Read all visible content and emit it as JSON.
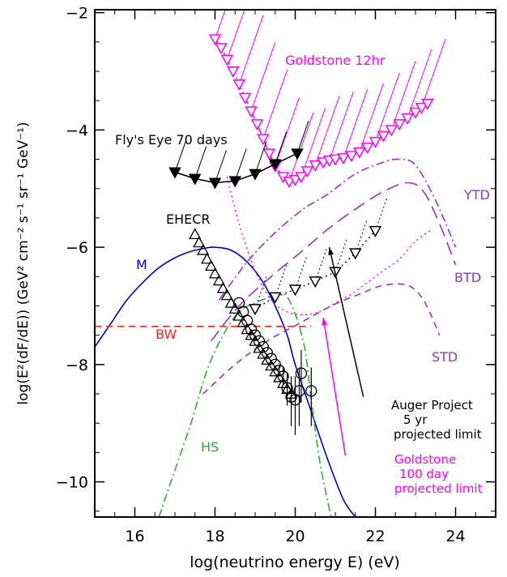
{
  "chart_data": {
    "type": "line",
    "xlabel": "log(neutrino energy E) (eV)",
    "ylabel": "log(E²(dF/dE))  (GeV² cm⁻² s⁻¹ sr⁻¹ GeV⁻¹)",
    "xlim": [
      15,
      25
    ],
    "ylim": [
      -10.6,
      -1.95
    ],
    "x_ticks": [
      16,
      18,
      20,
      22,
      24
    ],
    "y_ticks": [
      -10,
      -8,
      -6,
      -4,
      -2
    ],
    "x_tick_labels": [
      "16",
      "18",
      "20",
      "22",
      "24"
    ],
    "y_tick_labels": [
      "−10",
      "−8",
      "−6",
      "−4",
      "−2"
    ],
    "colors": {
      "goldstone": "#ff00ff",
      "topological": "#9933cc",
      "model_M": "#0000dd",
      "model_HS": "#33aa33",
      "bound_BW": "#ff2222",
      "data": "#000000"
    },
    "annotations": {
      "goldstone_12hr": "Goldstone 12hr",
      "flys_eye": "Fly's Eye 70 days",
      "ehecr": "EHECR",
      "m": "M",
      "bw": "BW",
      "hs": "HS",
      "ytd": "YTD",
      "btd": "BTD",
      "std": "STD",
      "auger_line1": "Auger Project",
      "auger_line2": "5 yr",
      "auger_line3": "projected limit",
      "goldstone100_line1": "Goldstone",
      "goldstone100_line2": "100 day",
      "goldstone100_line3": "projected limit"
    },
    "series": [
      {
        "key": "M",
        "style": "solid",
        "color": "model_M",
        "x": [
          15.0,
          15.4,
          15.8,
          16.2,
          16.6,
          17.0,
          17.4,
          17.8,
          18.0,
          18.4,
          18.8,
          19.2,
          19.5,
          19.8,
          20.0,
          20.4,
          20.8,
          21.2,
          21.5
        ],
        "y": [
          -7.7,
          -7.3,
          -6.9,
          -6.6,
          -6.35,
          -6.18,
          -6.07,
          -6.01,
          -6.0,
          -6.05,
          -6.25,
          -6.6,
          -7.0,
          -7.5,
          -8.0,
          -8.8,
          -9.6,
          -10.3,
          -10.6
        ]
      },
      {
        "key": "HS",
        "style": "dashdot",
        "color": "model_HS",
        "x": [
          16.6,
          17.0,
          17.4,
          17.8,
          18.2,
          18.6,
          19.0,
          19.4,
          19.8,
          20.2,
          20.4,
          20.6,
          20.8,
          20.9
        ],
        "y": [
          -10.6,
          -9.8,
          -9.0,
          -8.1,
          -7.5,
          -7.1,
          -6.95,
          -6.85,
          -6.85,
          -7.6,
          -8.6,
          -9.6,
          -10.3,
          -10.6
        ]
      },
      {
        "key": "BW",
        "style": "dashed",
        "color": "bound_BW",
        "x": [
          15.0,
          20.4
        ],
        "y": [
          -7.35,
          -7.35
        ]
      },
      {
        "key": "YTD",
        "style": "dashdot",
        "color": "topological",
        "x": [
          18.1,
          18.8,
          19.5,
          20.2,
          20.8,
          21.5,
          22.2,
          22.6,
          23.0,
          23.5,
          24.0
        ],
        "y": [
          -6.9,
          -6.25,
          -5.75,
          -5.35,
          -5.1,
          -4.75,
          -4.55,
          -4.5,
          -4.6,
          -5.2,
          -6.0
        ]
      },
      {
        "key": "BTD",
        "style": "longdash",
        "color": "topological",
        "x": [
          17.9,
          18.6,
          19.4,
          20.2,
          20.8,
          21.5,
          22.2,
          22.8,
          23.2,
          23.6,
          24.0
        ],
        "y": [
          -7.6,
          -7.0,
          -6.5,
          -6.05,
          -5.7,
          -5.35,
          -5.05,
          -4.9,
          -5.05,
          -5.6,
          -6.3
        ]
      },
      {
        "key": "STD",
        "style": "dashed",
        "color": "topological",
        "x": [
          17.7,
          18.5,
          19.3,
          20.1,
          20.9,
          21.6,
          22.2,
          22.8,
          23.2,
          23.6
        ],
        "y": [
          -8.5,
          -8.0,
          -7.6,
          -7.3,
          -7.0,
          -6.8,
          -6.65,
          -6.65,
          -6.9,
          -7.5
        ]
      },
      {
        "key": "Goldstone_12hr",
        "style": "dashdot",
        "color": "goldstone",
        "marker": "open-down-triangle",
        "hatch_up": true,
        "x": [
          18.0,
          18.15,
          18.3,
          18.45,
          18.6,
          18.75,
          18.9,
          19.05,
          19.2,
          19.35,
          19.5,
          19.7,
          19.85,
          20.0,
          20.15,
          20.3,
          20.5,
          20.7,
          20.85,
          21.0,
          21.2,
          21.4,
          21.6,
          21.8,
          22.0,
          22.2,
          22.4,
          22.6,
          22.8,
          23.0,
          23.15,
          23.3
        ],
        "y": [
          -2.45,
          -2.6,
          -2.8,
          -3.0,
          -3.22,
          -3.45,
          -3.68,
          -3.9,
          -4.15,
          -4.4,
          -4.62,
          -4.8,
          -4.88,
          -4.85,
          -4.8,
          -4.7,
          -4.6,
          -4.55,
          -4.52,
          -4.5,
          -4.48,
          -4.44,
          -4.38,
          -4.3,
          -4.2,
          -4.1,
          -4.0,
          -3.9,
          -3.8,
          -3.7,
          -3.62,
          -3.55
        ]
      },
      {
        "key": "Flys_Eye_70_days",
        "style": "solid",
        "color": "data",
        "marker": "filled-down-triangle",
        "hatch_up": true,
        "x": [
          17.0,
          17.5,
          18.0,
          18.5,
          19.0,
          19.5,
          20.05
        ],
        "y": [
          -4.72,
          -4.83,
          -4.9,
          -4.87,
          -4.75,
          -4.58,
          -4.4
        ]
      },
      {
        "key": "Auger",
        "style": "dotted",
        "color": "data",
        "marker": "open-down-triangle",
        "hatch_up": true,
        "x": [
          19.0,
          19.5,
          20.0,
          20.5,
          21.0,
          21.5,
          22.0
        ],
        "y": [
          -7.05,
          -6.85,
          -6.72,
          -6.58,
          -6.42,
          -6.1,
          -5.72
        ]
      },
      {
        "key": "Goldstone_100_day",
        "style": "dotted",
        "color": "goldstone",
        "x": [
          18.3,
          18.6,
          19.0,
          19.4,
          19.8,
          20.2,
          20.6,
          21.0,
          21.4,
          21.8,
          22.2,
          22.6,
          23.0,
          23.4
        ],
        "y": [
          -4.8,
          -5.6,
          -6.4,
          -6.9,
          -7.1,
          -7.15,
          -7.1,
          -6.95,
          -6.8,
          -6.6,
          -6.4,
          -6.2,
          -5.9,
          -5.7
        ]
      },
      {
        "key": "EHECR_triangles",
        "style": "none",
        "color": "data",
        "marker": "open-up-triangle",
        "x": [
          17.5,
          17.6,
          17.7,
          17.8,
          17.9,
          18.0,
          18.1,
          18.2,
          18.3,
          18.4,
          18.5,
          18.6,
          18.7,
          18.8,
          18.9,
          19.0,
          19.1,
          19.2,
          19.3,
          19.4,
          19.5,
          19.6,
          19.7,
          19.8,
          19.9
        ],
        "y": [
          -5.78,
          -5.92,
          -6.05,
          -6.2,
          -6.32,
          -6.45,
          -6.57,
          -6.7,
          -6.82,
          -6.95,
          -7.05,
          -7.17,
          -7.28,
          -7.4,
          -7.5,
          -7.6,
          -7.72,
          -7.82,
          -7.92,
          -8.02,
          -8.12,
          -8.22,
          -8.32,
          -8.42,
          -8.5
        ]
      },
      {
        "key": "EHECR_circles",
        "style": "none",
        "color": "data",
        "marker": "open-circle",
        "x": [
          18.6,
          18.7,
          18.8,
          18.9,
          19.0,
          19.1,
          19.2,
          19.3,
          19.4,
          19.5,
          19.6,
          19.7,
          19.8,
          19.9,
          20.0,
          20.1,
          20.15,
          20.4
        ],
        "y": [
          -6.95,
          -7.1,
          -7.25,
          -7.4,
          -7.5,
          -7.6,
          -7.7,
          -7.8,
          -7.9,
          -8.0,
          -8.1,
          -8.2,
          -8.4,
          -8.55,
          -8.6,
          -8.45,
          -8.15,
          -8.45
        ],
        "err_low": [
          0,
          0,
          0,
          0,
          0,
          0,
          0,
          0,
          0,
          0,
          0.1,
          0.15,
          0.3,
          0.5,
          0.6,
          0.6,
          0.5,
          0.6
        ],
        "err_high": [
          0,
          0,
          0,
          0,
          0,
          0,
          0,
          0,
          0,
          0,
          0.1,
          0.15,
          0.25,
          0.35,
          0.4,
          0.4,
          0.4,
          0.4
        ]
      }
    ]
  }
}
